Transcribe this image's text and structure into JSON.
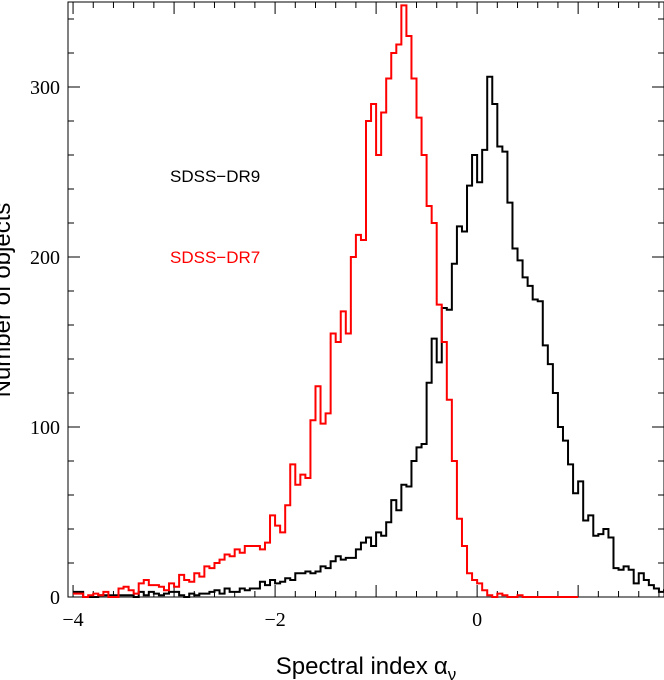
{
  "chart_data": {
    "type": "histogram",
    "title": "",
    "xlabel": "Spectral index",
    "xlabel_symbol": "α",
    "xlabel_subscript": "ν",
    "ylabel": "Number of objects",
    "xlim": [
      -4.05,
      1.85
    ],
    "ylim": [
      0,
      350
    ],
    "xticks": [
      -4,
      -2,
      0
    ],
    "xtick_labels": [
      "−4",
      "−2",
      "0"
    ],
    "yticks": [
      0,
      100,
      200,
      300
    ],
    "ytick_labels": [
      "0",
      "100",
      "200",
      "300"
    ],
    "bin_width": 0.05,
    "grid": false,
    "legend_placement": "upper-left, inside axes",
    "series": [
      {
        "name": "SDSS−DR9",
        "color": "#000000",
        "bin_start": -4.0,
        "values": [
          3,
          3,
          0,
          0,
          0,
          1,
          1,
          1,
          1,
          1,
          1,
          1,
          0,
          3,
          1,
          3,
          2,
          1,
          2,
          3,
          3,
          1,
          0,
          2,
          1,
          2,
          2,
          3,
          4,
          2,
          5,
          3,
          3,
          5,
          4,
          5,
          5,
          9,
          7,
          10,
          8,
          9,
          11,
          10,
          14,
          14,
          15,
          14,
          15,
          18,
          17,
          21,
          24,
          22,
          23,
          23,
          28,
          32,
          35,
          30,
          38,
          36,
          44,
          57,
          51,
          66,
          65,
          80,
          88,
          90,
          126,
          152,
          138,
          170,
          169,
          196,
          218,
          215,
          242,
          260,
          244,
          263,
          306,
          290,
          265,
          262,
          232,
          205,
          198,
          188,
          183,
          175,
          174,
          148,
          137,
          120,
          100,
          92,
          78,
          61,
          68,
          45,
          48,
          36,
          37,
          40,
          35,
          17,
          16,
          18,
          16,
          8,
          14,
          10,
          7,
          5,
          3,
          4,
          2,
          1,
          3,
          1,
          1,
          1,
          2,
          0,
          1,
          1
        ]
      },
      {
        "name": "SDSS−DR7",
        "color": "#ff0000",
        "bin_start": -4.0,
        "values": [
          2,
          2,
          0,
          1,
          2,
          1,
          3,
          0,
          0,
          5,
          6,
          4,
          2,
          8,
          10,
          7,
          7,
          6,
          4,
          8,
          6,
          13,
          10,
          9,
          14,
          12,
          18,
          17,
          20,
          22,
          25,
          24,
          28,
          26,
          30,
          30,
          30,
          28,
          32,
          48,
          42,
          38,
          54,
          78,
          66,
          72,
          70,
          104,
          124,
          102,
          108,
          155,
          150,
          168,
          155,
          200,
          213,
          210,
          280,
          290,
          260,
          285,
          305,
          320,
          325,
          348,
          330,
          305,
          282,
          260,
          230,
          220,
          172,
          150,
          116,
          80,
          46,
          30,
          14,
          10,
          8,
          4,
          1,
          0,
          2,
          1,
          0,
          0,
          1,
          0,
          0,
          0,
          0,
          0,
          0,
          0,
          0,
          0,
          0,
          0
        ]
      }
    ]
  }
}
